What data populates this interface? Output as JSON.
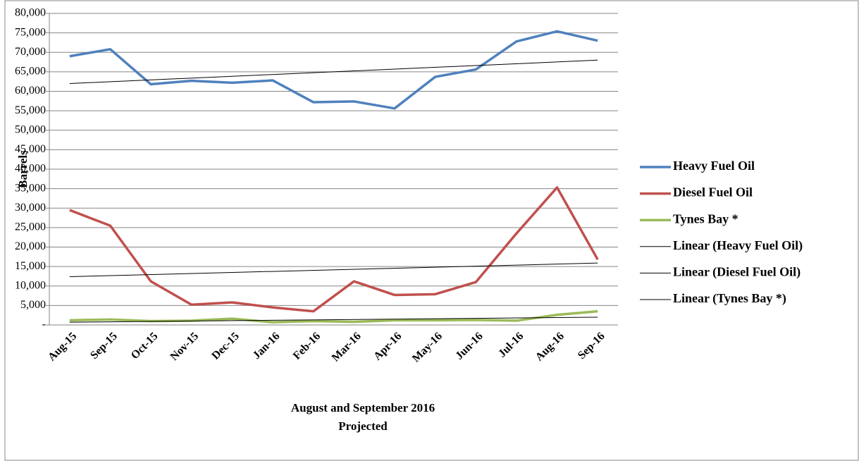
{
  "chart_data": {
    "type": "line",
    "ylabel": "Barrels",
    "xlabel": [
      "August and September 2016",
      "Projected"
    ],
    "categories": [
      "Aug-15",
      "Sep-15",
      "Oct-15",
      "Nov-15",
      "Dec-15",
      "Jan-16",
      "Feb-16",
      "Mar-16",
      "Apr-16",
      "May-16",
      "Jun-16",
      "Jul-16",
      "Aug-16",
      "Sep-16"
    ],
    "series": [
      {
        "name": "Heavy Fuel Oil",
        "color": "#4f81bd",
        "values": [
          69000,
          70800,
          61800,
          62700,
          62200,
          62800,
          57200,
          57400,
          55600,
          63700,
          65600,
          72800,
          75400,
          73000
        ]
      },
      {
        "name": "Diesel Fuel Oil",
        "color": "#c0504d",
        "values": [
          29500,
          25500,
          11200,
          5200,
          5800,
          4500,
          3500,
          11200,
          7700,
          7900,
          11000,
          23500,
          35300,
          16800
        ]
      },
      {
        "name": "Tynes Bay *",
        "color": "#9bbb59",
        "values": [
          1200,
          1400,
          1000,
          1100,
          1600,
          700,
          1000,
          800,
          1200,
          1200,
          1300,
          1100,
          2600,
          3500
        ]
      }
    ],
    "trendlines": [
      {
        "name": "Linear (Heavy Fuel Oil)",
        "color": "#000000",
        "values": [
          62000,
          68000
        ]
      },
      {
        "name": "Linear (Diesel Fuel Oil)",
        "color": "#000000",
        "values": [
          12400,
          15900
        ]
      },
      {
        "name": "Linear (Tynes Bay *)",
        "color": "#000000",
        "values": [
          700,
          2000
        ]
      }
    ],
    "ylim": [
      0,
      80000
    ],
    "yticks": [
      {
        "value": 0,
        "label": "-"
      },
      {
        "value": 5000,
        "label": "5,000"
      },
      {
        "value": 10000,
        "label": "10,000"
      },
      {
        "value": 15000,
        "label": "15,000"
      },
      {
        "value": 20000,
        "label": "20,000"
      },
      {
        "value": 25000,
        "label": "25,000"
      },
      {
        "value": 30000,
        "label": "30,000"
      },
      {
        "value": 35000,
        "label": "35,000"
      },
      {
        "value": 40000,
        "label": "40,000"
      },
      {
        "value": 45000,
        "label": "45,000"
      },
      {
        "value": 50000,
        "label": "50,000"
      },
      {
        "value": 55000,
        "label": "55,000"
      },
      {
        "value": 60000,
        "label": "60,000"
      },
      {
        "value": 65000,
        "label": "65,000"
      },
      {
        "value": 70000,
        "label": "70,000"
      },
      {
        "value": 75000,
        "label": "75,000"
      },
      {
        "value": 80000,
        "label": "80,000"
      }
    ],
    "grid": true,
    "legend": "right"
  }
}
